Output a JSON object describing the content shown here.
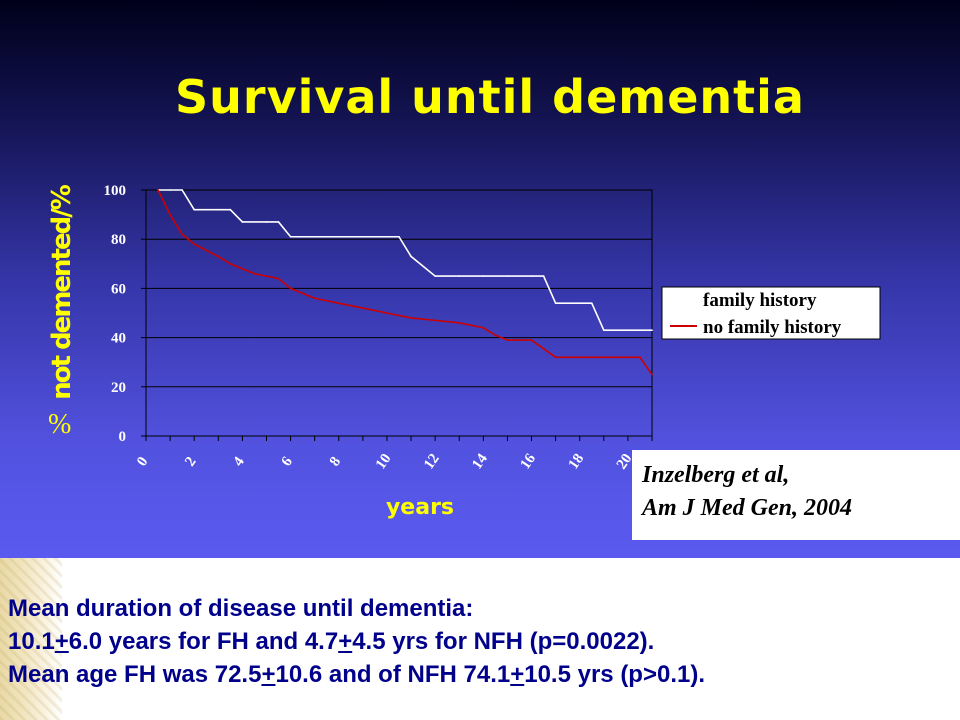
{
  "slide": {
    "title": "Survival until dementia",
    "citation": {
      "line1": "Inzelberg et al,",
      "line2": "Am J Med Gen, 2004"
    },
    "body": {
      "line1": "Mean duration of disease until dementia:",
      "line2": {
        "t1": "10.1",
        "pm1": "+",
        "t2": "6.0 years for FH and 4.7",
        "pm2": "+",
        "t3": "4.5 yrs for NFH (p=0.0022)."
      },
      "line3": {
        "t1": "Mean age FH was 72.5",
        "pm1": "+",
        "t2": "10.6 and of NFH 74.1",
        "pm2": "+",
        "t3": "10.5 yrs (p>0.1)."
      }
    }
  },
  "chart_data": {
    "type": "line",
    "ylabel": "not demented/%",
    "ylabel_extra": "%",
    "xlabel": "years",
    "xlim": [
      0,
      21
    ],
    "ylim": [
      0,
      100
    ],
    "yticks": [
      "0",
      "20",
      "40",
      "60",
      "80",
      "100"
    ],
    "xticks": [
      "0",
      "2",
      "4",
      "6",
      "8",
      "10",
      "12",
      "14",
      "16",
      "18",
      "20"
    ],
    "grid": "horizontal",
    "legend_position": "right",
    "series": [
      {
        "name": "family history",
        "color": "#ffffff",
        "x": [
          0.5,
          1,
          1.5,
          2,
          3,
          3.5,
          4,
          5,
          5.5,
          6,
          7,
          8,
          9,
          10,
          10.5,
          11,
          12,
          13,
          14,
          15,
          16,
          16.5,
          17,
          18,
          18.5,
          19,
          20,
          21
        ],
        "y": [
          100,
          100,
          100,
          92,
          92,
          92,
          87,
          87,
          87,
          81,
          81,
          81,
          81,
          81,
          81,
          73,
          65,
          65,
          65,
          65,
          65,
          65,
          54,
          54,
          54,
          43,
          43,
          43
        ]
      },
      {
        "name": "no family history",
        "color": "#cc0000",
        "x": [
          0.5,
          1,
          1.5,
          2,
          3,
          3.5,
          4,
          4.5,
          5,
          5.5,
          6,
          7,
          8,
          9,
          10,
          11,
          12,
          13,
          14,
          14.5,
          15,
          16,
          17,
          18,
          19,
          20,
          20.5,
          21
        ],
        "y": [
          100,
          90,
          82,
          78,
          73,
          70,
          68,
          66,
          65,
          64,
          60,
          56,
          54,
          52,
          50,
          48,
          47,
          46,
          44,
          41,
          39,
          39,
          32,
          32,
          32,
          32,
          32,
          25
        ]
      }
    ]
  }
}
